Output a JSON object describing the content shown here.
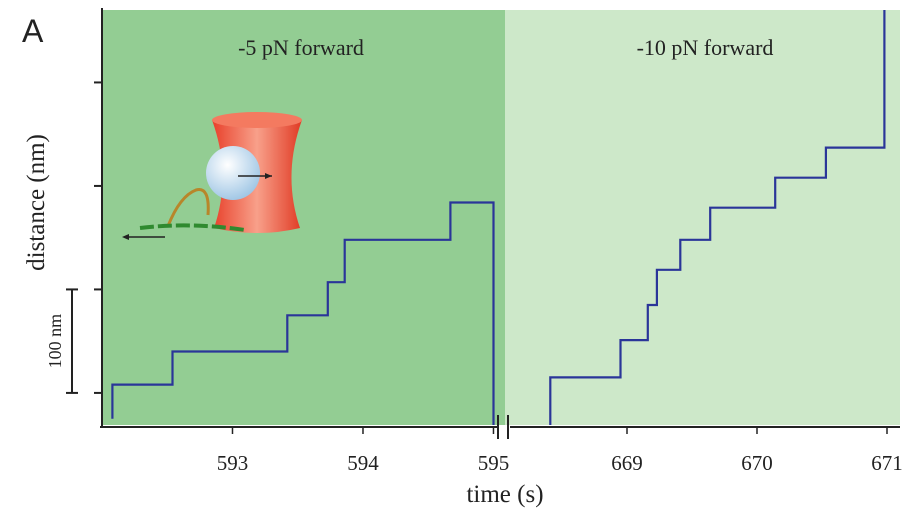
{
  "panel_label": "A",
  "chart_data": [
    {
      "type": "line",
      "title": "-5 pN forward",
      "ylabel": "distance (nm)",
      "background": "#93cd93",
      "xlim": [
        592,
        595.05
      ],
      "xticks": [
        593,
        594,
        595
      ],
      "ylim": [
        -31,
        370
      ],
      "yticks": [
        0,
        100,
        200,
        300
      ],
      "scale_bar": {
        "value": 100,
        "label": "100 nm"
      },
      "series": [
        {
          "color": "#2a3599",
          "x": [
            592.08,
            592.08,
            592.54,
            592.54,
            593.42,
            593.42,
            593.73,
            593.73,
            593.86,
            593.86,
            594.67,
            594.67,
            595.0,
            595.0
          ],
          "values": [
            -25,
            8,
            8,
            40,
            40,
            75,
            75,
            107,
            107,
            148,
            148,
            184,
            184,
            -31
          ]
        }
      ]
    },
    {
      "type": "line",
      "title": "-10 pN forward",
      "xlabel": "time (s)",
      "background": "#cde8c9",
      "xlim": [
        668.1,
        671.1
      ],
      "xticks": [
        669,
        670,
        671
      ],
      "ylim": [
        -31,
        370
      ],
      "series": [
        {
          "color": "#2a3599",
          "x": [
            668.41,
            668.41,
            668.95,
            668.95,
            669.16,
            669.16,
            669.23,
            669.23,
            669.41,
            669.41,
            669.64,
            669.64,
            670.14,
            670.14,
            670.53,
            670.53,
            670.98,
            670.98
          ],
          "values": [
            -31,
            15,
            15,
            51,
            51,
            85,
            85,
            119,
            119,
            148,
            148,
            179,
            179,
            208,
            208,
            237,
            237,
            370
          ]
        }
      ]
    }
  ]
}
